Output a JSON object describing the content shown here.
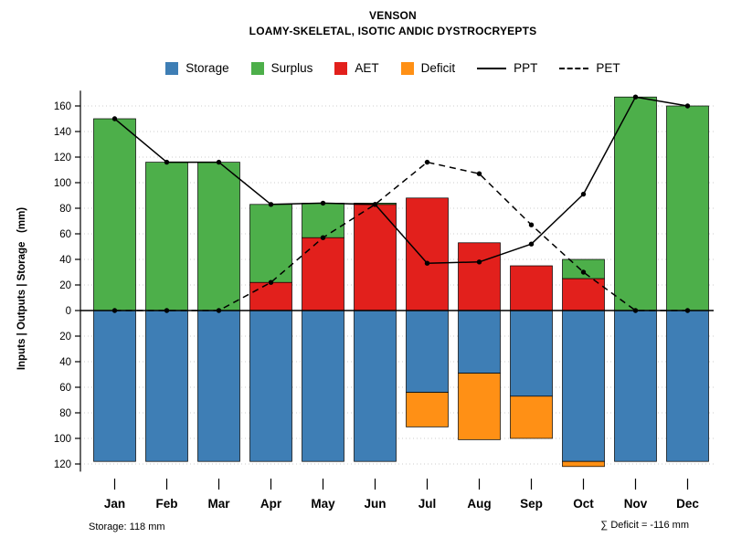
{
  "title": "VENSON",
  "subtitle": "LOAMY-SKELETAL, ISOTIC ANDIC DYSTROCRYEPTS",
  "y_axis_label": "Inputs | Outputs | Storage   (mm)",
  "footer": {
    "storage_note": "Storage: 118 mm",
    "deficit_note": "∑ Deficit = -116 mm"
  },
  "legend": [
    {
      "label": "Storage",
      "type": "box",
      "color": "#3E7EB5"
    },
    {
      "label": "Surplus",
      "type": "box",
      "color": "#4DAF4A"
    },
    {
      "label": "AET",
      "type": "box",
      "color": "#E2201C"
    },
    {
      "label": "Deficit",
      "type": "box",
      "color": "#FF9015"
    },
    {
      "label": "PPT",
      "type": "line-solid"
    },
    {
      "label": "PET",
      "type": "line-dashed"
    }
  ],
  "chart_data": {
    "type": "bar",
    "title": "VENSON — LOAMY-SKELETAL, ISOTIC ANDIC DYSTROCRYEPTS",
    "ylabel": "Inputs | Outputs | Storage (mm)",
    "categories": [
      "Jan",
      "Feb",
      "Mar",
      "Apr",
      "May",
      "Jun",
      "Jul",
      "Aug",
      "Sep",
      "Oct",
      "Nov",
      "Dec"
    ],
    "series": {
      "storage": [
        118,
        118,
        118,
        118,
        118,
        118,
        64,
        49,
        67,
        118,
        118,
        118
      ],
      "aet": [
        0,
        0,
        0,
        22,
        57,
        83,
        88,
        53,
        35,
        25,
        0,
        0
      ],
      "surplus": [
        150,
        116,
        116,
        61,
        27,
        1,
        0,
        0,
        0,
        15,
        167,
        160
      ],
      "deficit": [
        0,
        0,
        0,
        0,
        0,
        0,
        27,
        52,
        33,
        4,
        0,
        0
      ],
      "ppt": [
        150,
        116,
        116,
        83,
        84,
        83,
        37,
        38,
        52,
        91,
        167,
        160
      ],
      "pet": [
        0,
        0,
        0,
        22,
        57,
        83,
        116,
        107,
        67,
        30,
        0,
        0
      ]
    },
    "y_ticks_up": [
      0,
      20,
      40,
      60,
      80,
      100,
      120,
      140,
      160
    ],
    "y_ticks_down": [
      20,
      40,
      60,
      80,
      100,
      120
    ],
    "ylim_up": 172,
    "ylim_down": -126,
    "grid": "dotted-horizontal",
    "legend_position": "top",
    "colors": {
      "storage": "#3E7EB5",
      "surplus": "#4DAF4A",
      "aet": "#E2201C",
      "deficit": "#FF9015",
      "line": "#000000",
      "grid": "#cccccc"
    }
  }
}
